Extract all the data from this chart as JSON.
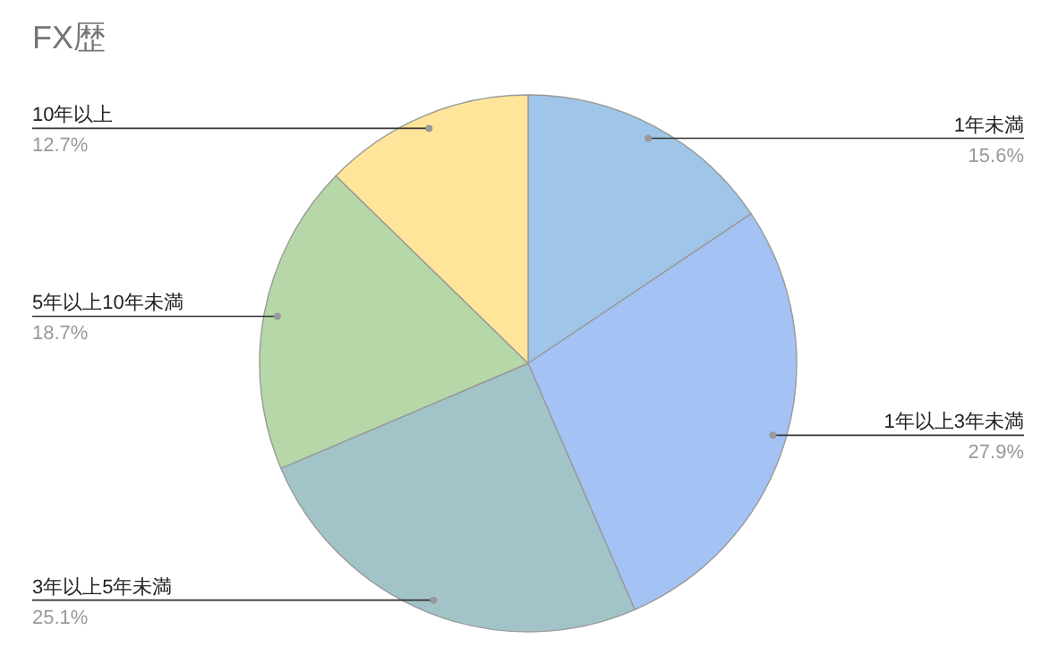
{
  "chart_data": {
    "type": "pie",
    "title": "FX歴",
    "categories": [
      "1年未満",
      "1年以上3年未満",
      "3年以上5年未満",
      "5年以上10年未満",
      "10年以上"
    ],
    "values": [
      15.6,
      27.9,
      25.1,
      18.7,
      12.7
    ],
    "value_labels": [
      "15.6%",
      "27.9%",
      "25.1%",
      "18.7%",
      "12.7%"
    ],
    "colors": [
      "#9fc5e8",
      "#a4c2f4",
      "#a2c4c9",
      "#b6d7a8",
      "#ffe599"
    ]
  }
}
